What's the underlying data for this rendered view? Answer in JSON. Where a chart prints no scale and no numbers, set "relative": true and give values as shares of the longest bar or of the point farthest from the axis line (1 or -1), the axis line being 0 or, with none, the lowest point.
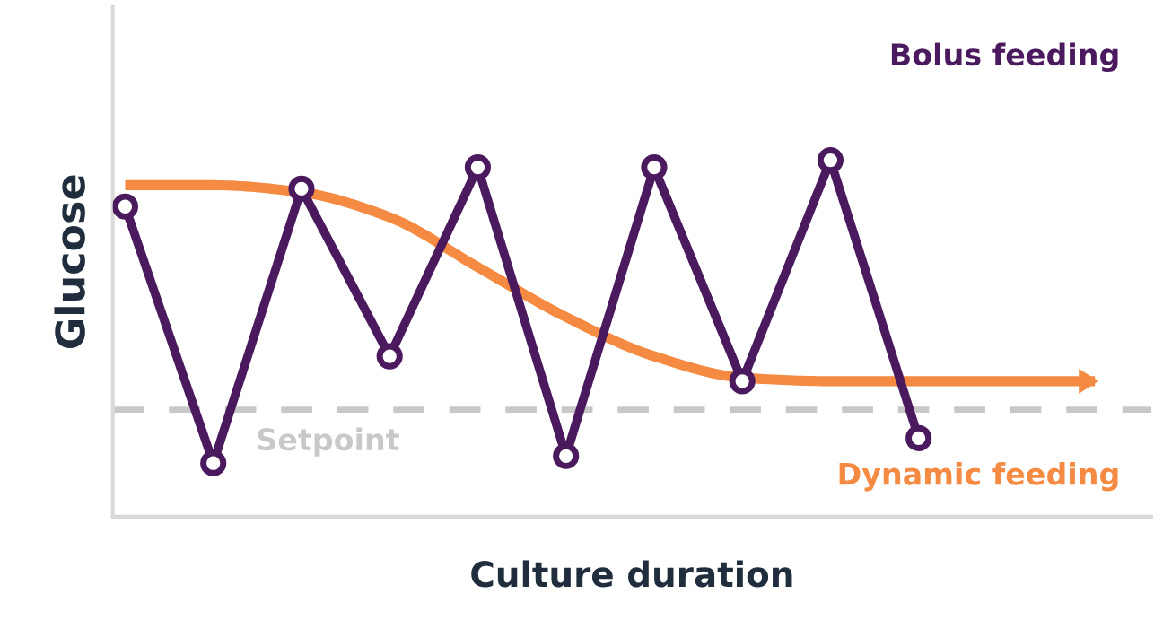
{
  "chart_data": {
    "type": "line",
    "relative": true,
    "xlabel": "Culture duration",
    "ylabel": "Glucose",
    "legend": false,
    "grid": false,
    "categories": [
      null,
      null,
      null,
      null,
      null,
      null,
      null,
      null,
      null,
      null,
      null,
      null
    ],
    "series": [
      {
        "name": "Bolus feeding",
        "color": "#4b1a5e",
        "marker": "circle",
        "values": [
          0.87,
          0.15,
          0.92,
          0.45,
          0.98,
          0.17,
          0.98,
          0.38,
          1,
          0.22,
          null,
          null
        ]
      },
      {
        "name": "Dynamic feeding",
        "color": "#f58a42",
        "marker": "none",
        "values": [
          0.93,
          0.93,
          0.91,
          0.84,
          0.7,
          0.56,
          0.45,
          0.39,
          0.38,
          0.38,
          0.38,
          0.38
        ]
      }
    ],
    "ref_lines": [
      {
        "axis": "y",
        "value": 0.3,
        "label": "Setpoint",
        "color": "#c8c8c8",
        "line_style": "dashed"
      }
    ]
  }
}
